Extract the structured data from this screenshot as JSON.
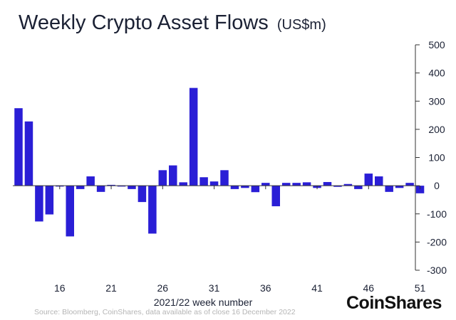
{
  "title": "Weekly Crypto Asset Flows",
  "title_unit": "(US$m)",
  "source": "Source: Bloomberg, CoinShares, data available as of close 16 December 2022",
  "brand": "CoinShares",
  "colors": {
    "bar": "#2a1ed6",
    "axis": "#333333",
    "text": "#1b2134"
  },
  "chart_data": {
    "type": "bar",
    "title": "Weekly Crypto Asset Flows (US$m)",
    "xlabel": "2021/22 week number",
    "ylabel": "US$m",
    "ylim": [
      -300,
      500
    ],
    "y_ticks": [
      "500",
      "400",
      "300",
      "200",
      "100",
      "0",
      "-100",
      "-200",
      "-300"
    ],
    "y_tick_values": [
      500,
      400,
      300,
      200,
      100,
      0,
      -100,
      -200,
      -300
    ],
    "x_tick_labels": [
      "16",
      "21",
      "26",
      "31",
      "36",
      "41",
      "46",
      "51"
    ],
    "x_tick_weeks": [
      16,
      21,
      26,
      31,
      36,
      41,
      46,
      51
    ],
    "x": [
      12,
      13,
      14,
      15,
      16,
      17,
      18,
      19,
      20,
      21,
      22,
      23,
      24,
      25,
      26,
      27,
      28,
      29,
      30,
      31,
      32,
      33,
      34,
      35,
      36,
      37,
      38,
      39,
      40,
      41,
      42,
      43,
      44,
      45,
      46,
      47,
      48,
      49,
      50,
      51
    ],
    "values": [
      275,
      228,
      -127,
      -102,
      -3,
      -180,
      -12,
      33,
      -22,
      3,
      -3,
      -12,
      -58,
      -170,
      55,
      72,
      12,
      347,
      30,
      15,
      55,
      -12,
      -8,
      -23,
      10,
      -73,
      10,
      10,
      12,
      -8,
      13,
      -4,
      6,
      -12,
      43,
      33,
      -22,
      -8,
      10,
      -27
    ]
  }
}
